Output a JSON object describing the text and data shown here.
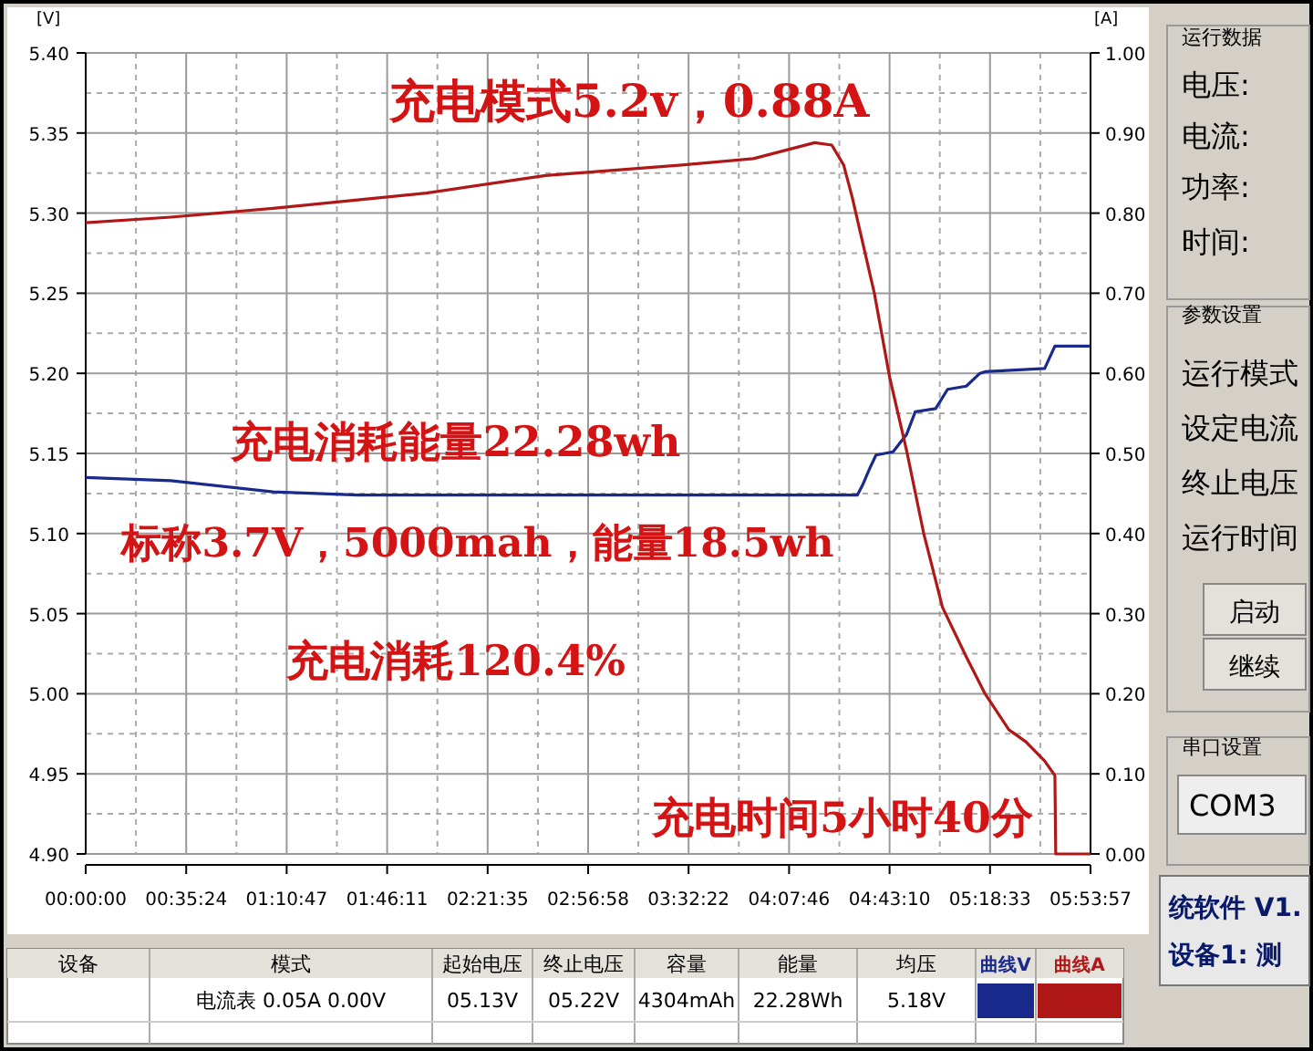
{
  "chart_data": {
    "type": "line",
    "ylabel": "[V]",
    "y2label": "[A]",
    "xlim": [
      0,
      5.89917
    ],
    "xticks": [
      {
        "value": 0,
        "label": "00:00:00"
      },
      {
        "value": 0.59,
        "label": "00:35:24"
      },
      {
        "value": 1.17972,
        "label": "01:10:47"
      },
      {
        "value": 1.76972,
        "label": "01:46:11"
      },
      {
        "value": 2.35972,
        "label": "02:21:35"
      },
      {
        "value": 2.94944,
        "label": "02:56:58"
      },
      {
        "value": 3.53944,
        "label": "03:32:22"
      },
      {
        "value": 4.12944,
        "label": "04:07:46"
      },
      {
        "value": 4.71944,
        "label": "04:43:10"
      },
      {
        "value": 5.30917,
        "label": "05:18:33"
      },
      {
        "value": 5.89917,
        "label": "05:53:57"
      }
    ],
    "ylim": [
      4.9,
      5.4
    ],
    "yticks": [
      {
        "value": 4.9,
        "label": "4.90"
      },
      {
        "value": 4.95,
        "label": "4.95"
      },
      {
        "value": 5.0,
        "label": "5.00"
      },
      {
        "value": 5.05,
        "label": "5.05"
      },
      {
        "value": 5.1,
        "label": "5.10"
      },
      {
        "value": 5.15,
        "label": "5.15"
      },
      {
        "value": 5.2,
        "label": "5.20"
      },
      {
        "value": 5.25,
        "label": "5.25"
      },
      {
        "value": 5.3,
        "label": "5.30"
      },
      {
        "value": 5.35,
        "label": "5.35"
      },
      {
        "value": 5.4,
        "label": "5.40"
      }
    ],
    "y2lim": [
      0,
      1
    ],
    "y2ticks": [
      {
        "value": 0,
        "label": "0.00"
      },
      {
        "value": 0.1,
        "label": "0.10"
      },
      {
        "value": 0.2,
        "label": "0.20"
      },
      {
        "value": 0.3,
        "label": "0.30"
      },
      {
        "value": 0.4,
        "label": "0.40"
      },
      {
        "value": 0.5,
        "label": "0.50"
      },
      {
        "value": 0.6,
        "label": "0.60"
      },
      {
        "value": 0.7,
        "label": "0.70"
      },
      {
        "value": 0.8,
        "label": "0.80"
      },
      {
        "value": 0.9,
        "label": "0.90"
      },
      {
        "value": 1.0,
        "label": "1.00"
      }
    ],
    "grid": true,
    "legend": "bottom",
    "series": [
      {
        "name": "曲线V",
        "color": "#1a2a8c",
        "x": [
          0,
          0.5,
          1.1,
          1.6,
          3,
          4.53,
          4.56,
          4.6,
          4.64,
          4.74,
          4.82,
          4.87,
          4.99,
          5.06,
          5.17,
          5.25,
          5.28,
          5.63,
          5.66,
          5.69,
          5.89917
        ],
        "values": [
          5.135,
          5.133,
          5.126,
          5.124,
          5.124,
          5.124,
          5.13,
          5.14,
          5.149,
          5.151,
          5.162,
          5.176,
          5.178,
          5.19,
          5.192,
          5.2,
          5.201,
          5.203,
          5.21,
          5.217,
          5.217
        ]
      },
      {
        "name": "曲线A",
        "color": "#b01818",
        "axis": "y2",
        "x": [
          0,
          0.5,
          1.1,
          2,
          2.7,
          3.5,
          3.92,
          4.28,
          4.38,
          4.45,
          4.5,
          4.63,
          4.72,
          4.82,
          4.92,
          5.03,
          5.17,
          5.28,
          5.42,
          5.52,
          5.63,
          5.69,
          5.695,
          5.89917
        ],
        "values": [
          0.788,
          0.795,
          0.806,
          0.825,
          0.847,
          0.86,
          0.868,
          0.888,
          0.885,
          0.86,
          0.82,
          0.7,
          0.595,
          0.503,
          0.4,
          0.308,
          0.246,
          0.2,
          0.155,
          0.14,
          0.116,
          0.098,
          0,
          0
        ]
      }
    ],
    "annotations": [
      "充电模式5.2v，0.88A",
      "充电消耗能量22.28wh",
      "标称3.7V，5000mah，能量18.5wh",
      "充电消耗120.4%",
      "充电时间5小时40分",
      "运行数据",
      "电压:",
      "电流:",
      "功率:",
      "时间:",
      "参数设置",
      "运行模式",
      "设定电流",
      "终止电压",
      "运行时间",
      "启动",
      "继续",
      "串口设置",
      "COM3",
      "统软件 V1.",
      "设备1: 测",
      "设备",
      "模式",
      "起始电压",
      "终止电压",
      "容量",
      "能量",
      "均压",
      "电流表 0.05A 0.00V",
      "05.13V",
      "05.22V",
      "4304mAh",
      "22.28Wh",
      "5.18V"
    ]
  }
}
